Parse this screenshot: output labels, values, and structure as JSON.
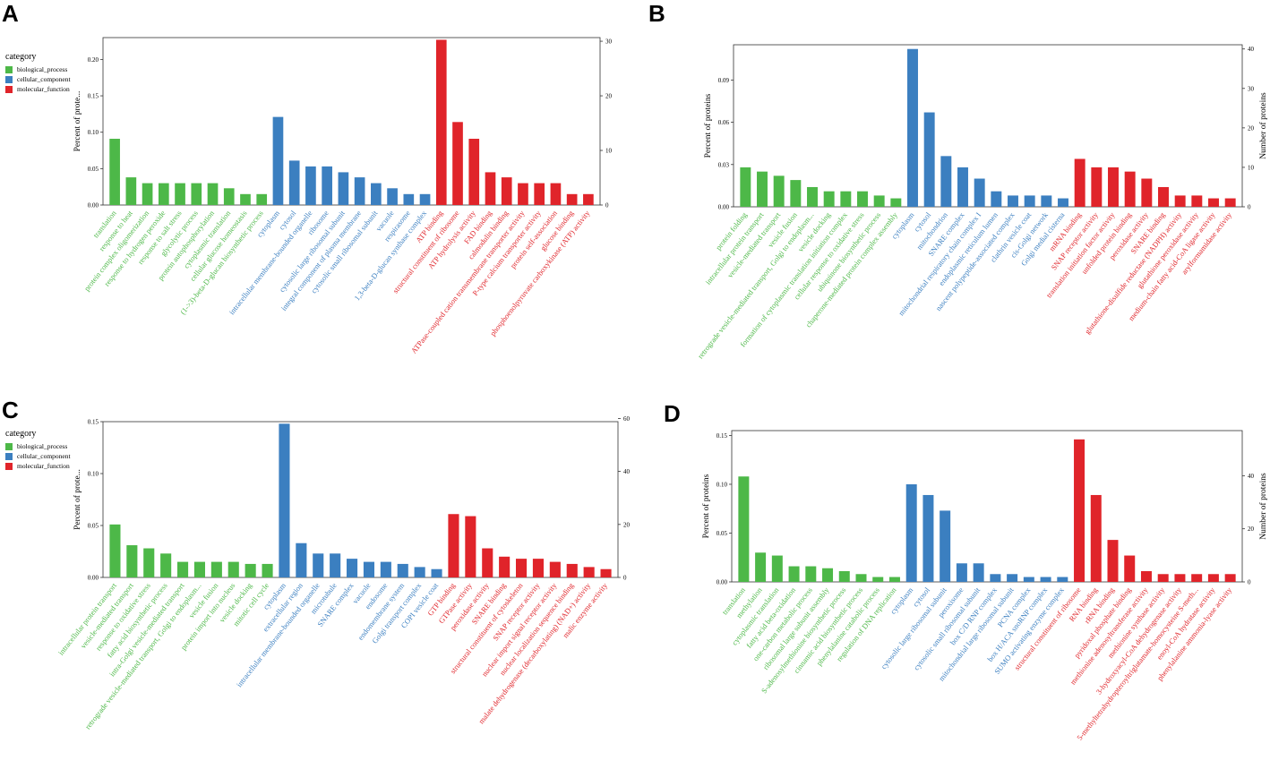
{
  "colors": {
    "biological_process": "#4DB848",
    "cellular_component": "#3B7FC0",
    "molecular_function": "#E0242A"
  },
  "legend": {
    "title": "category",
    "items": [
      "biological_process",
      "cellular_component",
      "molecular_function"
    ]
  },
  "chart_data": [
    {
      "panel": "A",
      "type": "bar",
      "ylabel": "Percent of prote...",
      "y2label": "",
      "ylim": [
        0,
        0.23
      ],
      "yticks": [
        "0.00",
        "0.05",
        "0.10",
        "0.15",
        "0.20"
      ],
      "yticks_values": [
        0,
        0.05,
        0.1,
        0.15,
        0.2
      ],
      "y2ticks": [
        "0",
        "10",
        "20",
        "30"
      ],
      "y2ticks_values": [
        0,
        10,
        20,
        30
      ],
      "y2_per_unit": 133.33,
      "has_legend": true,
      "categories": [
        {
          "label": "translation",
          "group": "biological_process",
          "value": 0.091
        },
        {
          "label": "response to heat",
          "group": "biological_process",
          "value": 0.038
        },
        {
          "label": "protein complex oligomerization",
          "group": "biological_process",
          "value": 0.03
        },
        {
          "label": "response to hydrogen peroxide",
          "group": "biological_process",
          "value": 0.03
        },
        {
          "label": "response to salt stress",
          "group": "biological_process",
          "value": 0.03
        },
        {
          "label": "glycolytic process",
          "group": "biological_process",
          "value": 0.03
        },
        {
          "label": "protein autophosphorylation",
          "group": "biological_process",
          "value": 0.03
        },
        {
          "label": "cytoplasmic translation",
          "group": "biological_process",
          "value": 0.023
        },
        {
          "label": "cellular glucose homeostasis",
          "group": "biological_process",
          "value": 0.015
        },
        {
          "label": "(1->3)-beta-D-glucan biosynthetic process",
          "group": "biological_process",
          "value": 0.015
        },
        {
          "label": "cytoplasm",
          "group": "cellular_component",
          "value": 0.121
        },
        {
          "label": "cytosol",
          "group": "cellular_component",
          "value": 0.061
        },
        {
          "label": "intracellular membrane-bounded organelle",
          "group": "cellular_component",
          "value": 0.053
        },
        {
          "label": "ribosome",
          "group": "cellular_component",
          "value": 0.053
        },
        {
          "label": "cytosolic large ribosomal subunit",
          "group": "cellular_component",
          "value": 0.045
        },
        {
          "label": "integral component of plasma membrane",
          "group": "cellular_component",
          "value": 0.038
        },
        {
          "label": "cytosolic small ribosomal subunit",
          "group": "cellular_component",
          "value": 0.03
        },
        {
          "label": "vacuole",
          "group": "cellular_component",
          "value": 0.023
        },
        {
          "label": "respirasome",
          "group": "cellular_component",
          "value": 0.015
        },
        {
          "label": "1,3-beta-D-glucan synthase complex",
          "group": "cellular_component",
          "value": 0.015
        },
        {
          "label": "ATP binding",
          "group": "molecular_function",
          "value": 0.227
        },
        {
          "label": "structural constituent of ribosome",
          "group": "molecular_function",
          "value": 0.114
        },
        {
          "label": "ATP hydrolysis activity",
          "group": "molecular_function",
          "value": 0.091
        },
        {
          "label": "FAD binding",
          "group": "molecular_function",
          "value": 0.045
        },
        {
          "label": "calmodulin binding",
          "group": "molecular_function",
          "value": 0.038
        },
        {
          "label": "ATPase-coupled cation transmembrane transporter activity",
          "group": "molecular_function",
          "value": 0.03
        },
        {
          "label": "P-type calcium transporter activity",
          "group": "molecular_function",
          "value": 0.03
        },
        {
          "label": "protein self-association",
          "group": "molecular_function",
          "value": 0.03
        },
        {
          "label": "glucose binding",
          "group": "molecular_function",
          "value": 0.015
        },
        {
          "label": "phosphoenolpyruvate carboxykinase (ATP) activity",
          "group": "molecular_function",
          "value": 0.015
        }
      ]
    },
    {
      "panel": "B",
      "type": "bar",
      "ylabel": "Percent of proteins",
      "y2label": "Number of proteins",
      "ylim": [
        0,
        0.115
      ],
      "yticks": [
        "0.00",
        "0.03",
        "0.06",
        "0.09"
      ],
      "yticks_values": [
        0,
        0.03,
        0.06,
        0.09
      ],
      "y2ticks": [
        "0",
        "10",
        "20",
        "30",
        "40"
      ],
      "y2ticks_values": [
        0,
        10,
        20,
        30,
        40
      ],
      "y2_per_unit": 357.1,
      "has_legend": false,
      "categories": [
        {
          "label": "protein folding",
          "group": "biological_process",
          "value": 0.028
        },
        {
          "label": "intracellular protein transport",
          "group": "biological_process",
          "value": 0.025
        },
        {
          "label": "vesicle-mediated transport",
          "group": "biological_process",
          "value": 0.022
        },
        {
          "label": "vesicle fusion",
          "group": "biological_process",
          "value": 0.019
        },
        {
          "label": "retrograde vesicle-mediated transport, Golgi to endoplasm...",
          "group": "biological_process",
          "value": 0.014
        },
        {
          "label": "vesicle docking",
          "group": "biological_process",
          "value": 0.011
        },
        {
          "label": "formation of cytoplasmic translation initiation complex",
          "group": "biological_process",
          "value": 0.011
        },
        {
          "label": "cellular response to oxidative stress",
          "group": "biological_process",
          "value": 0.011
        },
        {
          "label": "ubiquinone biosynthetic process",
          "group": "biological_process",
          "value": 0.008
        },
        {
          "label": "chaperone-mediated protein complex assembly",
          "group": "biological_process",
          "value": 0.006
        },
        {
          "label": "cytoplasm",
          "group": "cellular_component",
          "value": 0.112
        },
        {
          "label": "cytosol",
          "group": "cellular_component",
          "value": 0.067
        },
        {
          "label": "mitochondrion",
          "group": "cellular_component",
          "value": 0.036
        },
        {
          "label": "SNARE complex",
          "group": "cellular_component",
          "value": 0.028
        },
        {
          "label": "mitochondrial respiratory chain complex I",
          "group": "cellular_component",
          "value": 0.02
        },
        {
          "label": "endoplasmic reticulum lumen",
          "group": "cellular_component",
          "value": 0.011
        },
        {
          "label": "nascent polypeptide-associated complex",
          "group": "cellular_component",
          "value": 0.008
        },
        {
          "label": "clathrin vesicle coat",
          "group": "cellular_component",
          "value": 0.008
        },
        {
          "label": "cis-Golgi network",
          "group": "cellular_component",
          "value": 0.008
        },
        {
          "label": "Golgi medial cisterna",
          "group": "cellular_component",
          "value": 0.006
        },
        {
          "label": "mRNA binding",
          "group": "molecular_function",
          "value": 0.034
        },
        {
          "label": "SNAP receptor activity",
          "group": "molecular_function",
          "value": 0.028
        },
        {
          "label": "translation initiation factor activity",
          "group": "molecular_function",
          "value": 0.028
        },
        {
          "label": "unfolded protein binding",
          "group": "molecular_function",
          "value": 0.025
        },
        {
          "label": "peroxidase activity",
          "group": "molecular_function",
          "value": 0.02
        },
        {
          "label": "SNARE binding",
          "group": "molecular_function",
          "value": 0.014
        },
        {
          "label": "glutathione-disulfide reductase (NADPH) activity",
          "group": "molecular_function",
          "value": 0.008
        },
        {
          "label": "glutathione peroxidase activity",
          "group": "molecular_function",
          "value": 0.008
        },
        {
          "label": "medium-chain fatty acid-CoA ligase activity",
          "group": "molecular_function",
          "value": 0.006
        },
        {
          "label": "arylformamidase activity",
          "group": "molecular_function",
          "value": 0.006
        }
      ]
    },
    {
      "panel": "C",
      "type": "bar",
      "ylabel": "Percent of prote...",
      "y2label": "Number of proteins",
      "ylim": [
        0,
        0.15
      ],
      "yticks": [
        "0.00",
        "0.05",
        "0.10",
        "0.15"
      ],
      "yticks_values": [
        0,
        0.05,
        0.1,
        0.15
      ],
      "y2ticks": [
        "0",
        "20",
        "40",
        "60"
      ],
      "y2ticks_values": [
        0,
        20,
        40,
        60
      ],
      "y2_per_unit": 392,
      "has_legend": true,
      "categories": [
        {
          "label": "intracellular protein transport",
          "group": "biological_process",
          "value": 0.051
        },
        {
          "label": "vesicle-mediated transport",
          "group": "biological_process",
          "value": 0.031
        },
        {
          "label": "response to oxidative stress",
          "group": "biological_process",
          "value": 0.028
        },
        {
          "label": "fatty acid biosynthetic process",
          "group": "biological_process",
          "value": 0.023
        },
        {
          "label": "intra-Golgi vesicle-mediated transport",
          "group": "biological_process",
          "value": 0.015
        },
        {
          "label": "retrograde vesicle-mediated transport, Golgi to endoplasm...",
          "group": "biological_process",
          "value": 0.015
        },
        {
          "label": "vesicle fusion",
          "group": "biological_process",
          "value": 0.015
        },
        {
          "label": "protein import into nucleus",
          "group": "biological_process",
          "value": 0.015
        },
        {
          "label": "vesicle docking",
          "group": "biological_process",
          "value": 0.013
        },
        {
          "label": "mitotic cell cycle",
          "group": "biological_process",
          "value": 0.013
        },
        {
          "label": "cytoplasm",
          "group": "cellular_component",
          "value": 0.148
        },
        {
          "label": "extracellular region",
          "group": "cellular_component",
          "value": 0.033
        },
        {
          "label": "intracellular membrane-bounded organelle",
          "group": "cellular_component",
          "value": 0.023
        },
        {
          "label": "microtubule",
          "group": "cellular_component",
          "value": 0.023
        },
        {
          "label": "SNARE complex",
          "group": "cellular_component",
          "value": 0.018
        },
        {
          "label": "vacuole",
          "group": "cellular_component",
          "value": 0.015
        },
        {
          "label": "endosome",
          "group": "cellular_component",
          "value": 0.015
        },
        {
          "label": "endomembrane system",
          "group": "cellular_component",
          "value": 0.013
        },
        {
          "label": "Golgi transport complex",
          "group": "cellular_component",
          "value": 0.01
        },
        {
          "label": "COPI vesicle coat",
          "group": "cellular_component",
          "value": 0.008
        },
        {
          "label": "GTP binding",
          "group": "molecular_function",
          "value": 0.061
        },
        {
          "label": "GTPase activity",
          "group": "molecular_function",
          "value": 0.059
        },
        {
          "label": "peroxidase activity",
          "group": "molecular_function",
          "value": 0.028
        },
        {
          "label": "SNARE binding",
          "group": "molecular_function",
          "value": 0.02
        },
        {
          "label": "structural constituent of cytoskeleton",
          "group": "molecular_function",
          "value": 0.018
        },
        {
          "label": "SNAP receptor activity",
          "group": "molecular_function",
          "value": 0.018
        },
        {
          "label": "nuclear import signal receptor activity",
          "group": "molecular_function",
          "value": 0.015
        },
        {
          "label": "nuclear localization sequence binding",
          "group": "molecular_function",
          "value": 0.013
        },
        {
          "label": "malate dehydrogenase (decarboxylating) (NAD+) activity",
          "group": "molecular_function",
          "value": 0.01
        },
        {
          "label": "malic enzyme activity",
          "group": "molecular_function",
          "value": 0.008
        }
      ]
    },
    {
      "panel": "D",
      "type": "bar",
      "ylabel": "Percent of proteins",
      "y2label": "Number of proteins",
      "ylim": [
        0,
        0.155
      ],
      "yticks": [
        "0.00",
        "0.05",
        "0.10",
        "0.15"
      ],
      "yticks_values": [
        0,
        0.05,
        0.1,
        0.15
      ],
      "y2ticks": [
        "0",
        "20",
        "40"
      ],
      "y2ticks_values": [
        0,
        20,
        40
      ],
      "y2_per_unit": 367.6,
      "has_legend": false,
      "categories": [
        {
          "label": "translation",
          "group": "biological_process",
          "value": 0.108
        },
        {
          "label": "methylation",
          "group": "biological_process",
          "value": 0.03
        },
        {
          "label": "cytoplasmic translation",
          "group": "biological_process",
          "value": 0.027
        },
        {
          "label": "fatty acid beta-oxidation",
          "group": "biological_process",
          "value": 0.016
        },
        {
          "label": "one-carbon metabolic process",
          "group": "biological_process",
          "value": 0.016
        },
        {
          "label": "ribosomal large subunit assembly",
          "group": "biological_process",
          "value": 0.014
        },
        {
          "label": "S-adenosylmethionine biosynthetic process",
          "group": "biological_process",
          "value": 0.011
        },
        {
          "label": "cinnamic acid biosynthetic process",
          "group": "biological_process",
          "value": 0.008
        },
        {
          "label": "phenylalanine catabolic process",
          "group": "biological_process",
          "value": 0.005
        },
        {
          "label": "regulation of DNA replication",
          "group": "biological_process",
          "value": 0.005
        },
        {
          "label": "cytoplasm",
          "group": "cellular_component",
          "value": 0.1
        },
        {
          "label": "cytosol",
          "group": "cellular_component",
          "value": 0.089
        },
        {
          "label": "cytosolic large ribosomal subunit",
          "group": "cellular_component",
          "value": 0.073
        },
        {
          "label": "peroxisome",
          "group": "cellular_component",
          "value": 0.019
        },
        {
          "label": "cytosolic small ribosomal subunit",
          "group": "cellular_component",
          "value": 0.019
        },
        {
          "label": "box C/D RNP complex",
          "group": "cellular_component",
          "value": 0.008
        },
        {
          "label": "mitochondrial large ribosomal subunit",
          "group": "cellular_component",
          "value": 0.008
        },
        {
          "label": "PCNA complex",
          "group": "cellular_component",
          "value": 0.005
        },
        {
          "label": "box H/ACA snoRNP complex",
          "group": "cellular_component",
          "value": 0.005
        },
        {
          "label": "SUMO activating enzyme complex",
          "group": "cellular_component",
          "value": 0.005
        },
        {
          "label": "structural constituent of ribosome",
          "group": "molecular_function",
          "value": 0.146
        },
        {
          "label": "RNA binding",
          "group": "molecular_function",
          "value": 0.089
        },
        {
          "label": "rRNA binding",
          "group": "molecular_function",
          "value": 0.043
        },
        {
          "label": "pyridoxal phosphate binding",
          "group": "molecular_function",
          "value": 0.027
        },
        {
          "label": "methionine adenosyltransferase activity",
          "group": "molecular_function",
          "value": 0.011
        },
        {
          "label": "methionine synthase activity",
          "group": "molecular_function",
          "value": 0.008
        },
        {
          "label": "3-hydroxyacyl-CoA dehydrogenase activity",
          "group": "molecular_function",
          "value": 0.008
        },
        {
          "label": "5-methyltetrahydropteroyltriglutamate-homocysteine S-meth...",
          "group": "molecular_function",
          "value": 0.008
        },
        {
          "label": "enoyl-CoA hydratase activity",
          "group": "molecular_function",
          "value": 0.008
        },
        {
          "label": "phenylalanine ammonia-lyase activity",
          "group": "molecular_function",
          "value": 0.008
        }
      ]
    }
  ]
}
